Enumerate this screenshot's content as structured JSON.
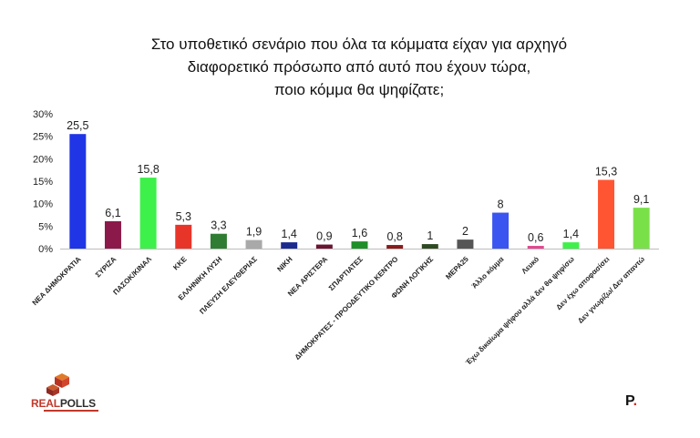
{
  "title_lines": [
    "Στο υποθετικό σενάριο που όλα τα κόμματα είχαν για αρχηγό",
    "διαφορετικό πρόσωπο από αυτό που έχουν τώρα,",
    "ποιο κόμμα θα ψηφίζατε;"
  ],
  "brand": {
    "real": "REAL",
    "polls": "POLLS",
    "p_letter": "P",
    "p_dot": "."
  },
  "chart_data": {
    "type": "bar",
    "title": "Στο υποθετικό σενάριο που όλα τα κόμματα είχαν για αρχηγό διαφορετικό πρόσωπο από αυτό που έχουν τώρα, ποιο κόμμα θα ψηφίζατε;",
    "xlabel": "",
    "ylabel": "",
    "ylim": [
      0,
      30
    ],
    "yticks": [
      "0%",
      "5%",
      "10%",
      "15%",
      "20%",
      "25%",
      "30%"
    ],
    "grid": false,
    "categories": [
      "ΝΕΑ ΔΗΜΟΚΡΑΤΙΑ",
      "ΣΥΡΙΖΑ",
      "ΠΑΣΟΚ/ΚΙΝΑΛ",
      "ΚΚΕ",
      "ΕΛΛΗΝΙΚΗ ΛΥΣΗ",
      "ΠΛΕΥΣΗ ΕΛΕΥΘΕΡΙΑΣ",
      "ΝΙΚΗ",
      "ΝΕΑ ΑΡΙΣΤΕΡΑ",
      "ΣΠΑΡΤΙΑΤΕΣ",
      "ΔΗΜΟΚΡΑΤΕΣ - ΠΡΟΟΔΕΥΤΙΚΟ ΚΕΝΤΡΟ",
      "ΦΩΝΗ ΛΟΓΙΚΗΣ",
      "ΜΕΡΑ25",
      "Άλλο κόμμα",
      "Λευκό",
      "Έχω δικαίωμα ψήφου αλλά δεν θα ψηφίσω",
      "Δεν έχω αποφασίσει",
      "Δεν γνωρίζω/ Δεν απαντώ"
    ],
    "values": [
      25.5,
      6.1,
      15.8,
      5.3,
      3.3,
      1.9,
      1.4,
      0.9,
      1.6,
      0.8,
      1,
      2,
      8,
      0.6,
      1.4,
      15.3,
      9.1
    ],
    "value_labels": [
      "25,5",
      "6,1",
      "15,8",
      "5,3",
      "3,3",
      "1,9",
      "1,4",
      "0,9",
      "1,6",
      "0,8",
      "1",
      "2",
      "8",
      "0,6",
      "1,4",
      "15,3",
      "9,1"
    ],
    "colors": [
      "#1f35e6",
      "#8b1a4a",
      "#3ef04a",
      "#e8352a",
      "#2e7d32",
      "#a9a9a9",
      "#1b2a8f",
      "#6b1530",
      "#1f8f2a",
      "#8b1a1a",
      "#2f4a22",
      "#555555",
      "#3b55f0",
      "#e2488f",
      "#3ef04a",
      "#ff5533",
      "#7ae04a"
    ]
  }
}
